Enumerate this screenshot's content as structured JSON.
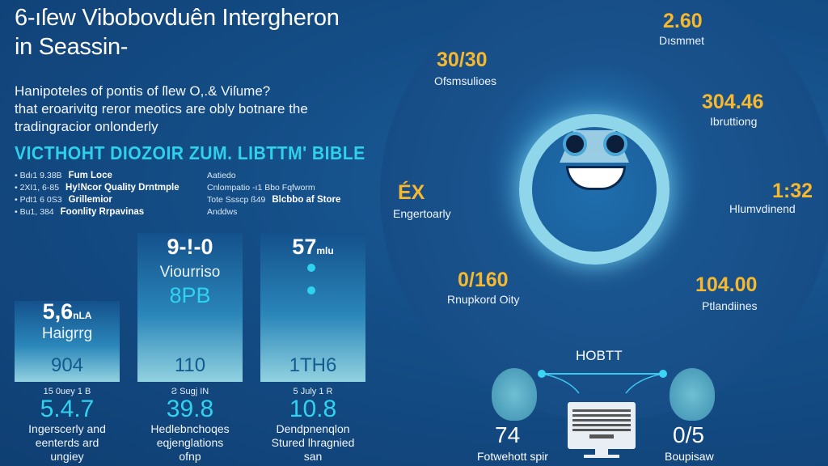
{
  "title": {
    "line1": "6-ıſew Vibobovduên Intergheron",
    "line2": "in Seassin-"
  },
  "intro": {
    "line1": "Hanipoteles of pontis of ſlew O,.& Viſume?",
    "line2": "that eroarivitg reror meotics are obly botnare the",
    "line3": "tradingracior onlonderly"
  },
  "heading": "VICTHOHT DIOZOIR ZUM. LIBTTM' BIBLE",
  "list_left": [
    {
      "code": "Bdı1 9.38B",
      "label": "Fum Loce"
    },
    {
      "code": "2XI1, 6-85",
      "label": "Hy!Ncor Quality Drntmple"
    },
    {
      "code": "Pdt1 6 0S3",
      "label": "Grillemior"
    },
    {
      "code": "Bu1, 384",
      "label": "Foonlity Rrpavinas"
    }
  ],
  "list_right": [
    {
      "text": "Aatiedo",
      "bold": ""
    },
    {
      "text": "Cnlompatio -ı1 Bbo Fqfworm",
      "bold": ""
    },
    {
      "text": "Tote Ssscp ß49",
      "bold": "Blcbbo af Store"
    },
    {
      "text": "Anddws",
      "bold": ""
    }
  ],
  "bars": [
    {
      "value": "5,6",
      "unit": "nLA",
      "sub": "Haigrrg",
      "bottom": "904",
      "fill": 0.55
    },
    {
      "value": "9-!-0",
      "unit": "",
      "sub": "Viourriso",
      "accent": "8PB",
      "bottom": "110",
      "fill": 1.0
    },
    {
      "value": "57",
      "unit": "mlu",
      "sub": "",
      "accent": "",
      "bottom": "1TH6",
      "fill": 1.0
    }
  ],
  "columns": [
    {
      "label": "15 0uey 1 B",
      "number": "5.4.7",
      "desc": [
        "Ingerscerly and",
        "eenterds ard",
        "ungiey"
      ]
    },
    {
      "label": "Ƨ Sugj IN",
      "number": "39.8",
      "desc": [
        "Hedlebnchoqes",
        "eqjenglations",
        "ofnp"
      ]
    },
    {
      "label": "5 July 1 R",
      "number": "10.8",
      "desc": [
        "Dendpnenqlon",
        "Stured lhragnied",
        "san"
      ]
    }
  ],
  "stats": [
    {
      "value": "2.60",
      "label": "Dısmmet"
    },
    {
      "value": "30/30",
      "label": "Ofsmsulioes"
    },
    {
      "value": "304.46",
      "label": "Ibruttiong"
    },
    {
      "value": "ÉX",
      "label": "Engertoarly"
    },
    {
      "value": "1:32",
      "label": "Hlumvdinend"
    },
    {
      "value": "0/160",
      "label": "Rnupkord Oity"
    },
    {
      "value": "104.00",
      "label": "Ptlandiines"
    }
  ],
  "network": {
    "title": "HOBTT",
    "left_value": "74",
    "left_label": "Fotwehott spir",
    "right_value": "0/5",
    "right_label": "Boupisaw"
  },
  "colors": {
    "accent": "#2fd0ec",
    "highlight": "#f5b82e",
    "background": "#144d86"
  }
}
